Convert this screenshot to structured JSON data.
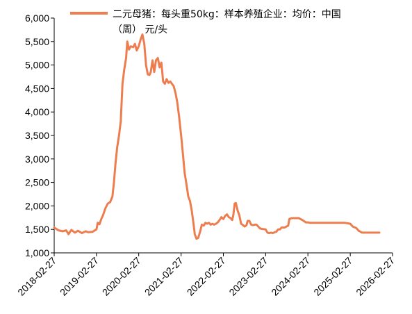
{
  "chart_data": {
    "type": "line",
    "title": "",
    "xlabel": "",
    "ylabel": "",
    "ylim": [
      1000,
      6000
    ],
    "y_ticks": [
      "1,000",
      "1,500",
      "2,000",
      "2,500",
      "3,000",
      "3,500",
      "4,000",
      "4,500",
      "5,000",
      "5,500",
      "6,000"
    ],
    "y_tick_values": [
      1000,
      1500,
      2000,
      2500,
      3000,
      3500,
      4000,
      4500,
      5000,
      5500,
      6000
    ],
    "x_ticks": [
      "2018-02-27",
      "2019-02-27",
      "2020-02-27",
      "2021-02-27",
      "2022-02-27",
      "2023-02-27",
      "2024-02-27",
      "2025-02-27",
      "2026-02-27"
    ],
    "x_range": [
      "2018-02-27",
      "2026-02-27"
    ],
    "grid": false,
    "legend_position": "top",
    "series": [
      {
        "name": "二元母猪：每头重50kg：样本养殖企业：均价：中国（周）  元/头",
        "color": "#ed7d4e",
        "points": [
          [
            "2018-02-27",
            1540
          ],
          [
            "2018-04-05",
            1480
          ],
          [
            "2018-05-10",
            1460
          ],
          [
            "2018-06-10",
            1480
          ],
          [
            "2018-07-01",
            1400
          ],
          [
            "2018-07-25",
            1490
          ],
          [
            "2018-08-25",
            1430
          ],
          [
            "2018-09-20",
            1470
          ],
          [
            "2018-10-25",
            1420
          ],
          [
            "2018-11-25",
            1460
          ],
          [
            "2018-12-20",
            1440
          ],
          [
            "2019-01-25",
            1450
          ],
          [
            "2019-02-27",
            1500
          ],
          [
            "2019-03-10",
            1640
          ],
          [
            "2019-03-25",
            1610
          ],
          [
            "2019-04-10",
            1720
          ],
          [
            "2019-04-25",
            1800
          ],
          [
            "2019-05-15",
            1950
          ],
          [
            "2019-06-05",
            2050
          ],
          [
            "2019-06-25",
            2080
          ],
          [
            "2019-07-15",
            2200
          ],
          [
            "2019-07-28",
            2500
          ],
          [
            "2019-08-10",
            2900
          ],
          [
            "2019-08-25",
            3250
          ],
          [
            "2019-09-10",
            3500
          ],
          [
            "2019-09-25",
            3800
          ],
          [
            "2019-10-10",
            4600
          ],
          [
            "2019-10-25",
            4900
          ],
          [
            "2019-11-10",
            5150
          ],
          [
            "2019-11-20",
            5500
          ],
          [
            "2019-12-05",
            5330
          ],
          [
            "2019-12-20",
            5400
          ],
          [
            "2020-01-10",
            5380
          ],
          [
            "2020-01-25",
            5450
          ],
          [
            "2020-02-10",
            5310
          ],
          [
            "2020-02-27",
            5400
          ],
          [
            "2020-03-15",
            5550
          ],
          [
            "2020-03-30",
            5650
          ],
          [
            "2020-04-15",
            5450
          ],
          [
            "2020-04-30",
            5000
          ],
          [
            "2020-05-15",
            4800
          ],
          [
            "2020-05-30",
            4790
          ],
          [
            "2020-06-10",
            4850
          ],
          [
            "2020-06-25",
            5100
          ],
          [
            "2020-07-10",
            4850
          ],
          [
            "2020-07-25",
            5100
          ],
          [
            "2020-08-10",
            5150
          ],
          [
            "2020-08-25",
            4950
          ],
          [
            "2020-09-10",
            5050
          ],
          [
            "2020-09-25",
            4650
          ],
          [
            "2020-10-10",
            4600
          ],
          [
            "2020-10-25",
            4700
          ],
          [
            "2020-11-10",
            4620
          ],
          [
            "2020-11-25",
            4650
          ],
          [
            "2020-12-10",
            4600
          ],
          [
            "2020-12-25",
            4550
          ],
          [
            "2021-01-10",
            4400
          ],
          [
            "2021-01-25",
            4200
          ],
          [
            "2021-02-10",
            3900
          ],
          [
            "2021-02-27",
            3500
          ],
          [
            "2021-03-15",
            3100
          ],
          [
            "2021-03-30",
            2700
          ],
          [
            "2021-04-15",
            2450
          ],
          [
            "2021-04-30",
            2200
          ],
          [
            "2021-05-15",
            2100
          ],
          [
            "2021-05-30",
            1900
          ],
          [
            "2021-06-15",
            1600
          ],
          [
            "2021-06-25",
            1400
          ],
          [
            "2021-07-10",
            1300
          ],
          [
            "2021-07-25",
            1320
          ],
          [
            "2021-08-10",
            1450
          ],
          [
            "2021-08-25",
            1600
          ],
          [
            "2021-09-10",
            1580
          ],
          [
            "2021-09-25",
            1640
          ],
          [
            "2021-10-10",
            1620
          ],
          [
            "2021-10-25",
            1640
          ],
          [
            "2021-11-10",
            1600
          ],
          [
            "2021-11-25",
            1620
          ],
          [
            "2021-12-10",
            1600
          ],
          [
            "2021-12-25",
            1620
          ],
          [
            "2022-01-10",
            1650
          ],
          [
            "2022-01-25",
            1700
          ],
          [
            "2022-02-10",
            1760
          ],
          [
            "2022-02-27",
            1720
          ],
          [
            "2022-03-15",
            1790
          ],
          [
            "2022-03-30",
            1820
          ],
          [
            "2022-04-15",
            1760
          ],
          [
            "2022-04-30",
            1740
          ],
          [
            "2022-05-15",
            1700
          ],
          [
            "2022-05-25",
            1820
          ],
          [
            "2022-06-05",
            2050
          ],
          [
            "2022-06-15",
            2060
          ],
          [
            "2022-06-30",
            1900
          ],
          [
            "2022-07-15",
            1800
          ],
          [
            "2022-07-30",
            1620
          ],
          [
            "2022-08-15",
            1590
          ],
          [
            "2022-08-30",
            1560
          ],
          [
            "2022-09-15",
            1590
          ],
          [
            "2022-09-25",
            1680
          ],
          [
            "2022-10-10",
            1680
          ],
          [
            "2022-10-25",
            1600
          ],
          [
            "2022-11-10",
            1590
          ],
          [
            "2022-11-25",
            1600
          ],
          [
            "2022-12-10",
            1600
          ],
          [
            "2022-12-25",
            1560
          ],
          [
            "2023-01-10",
            1520
          ],
          [
            "2023-01-25",
            1510
          ],
          [
            "2023-02-27",
            1500
          ],
          [
            "2023-03-15",
            1430
          ],
          [
            "2023-03-30",
            1420
          ],
          [
            "2023-04-15",
            1430
          ],
          [
            "2023-04-30",
            1420
          ],
          [
            "2023-05-15",
            1440
          ],
          [
            "2023-05-30",
            1450
          ],
          [
            "2023-06-15",
            1500
          ],
          [
            "2023-06-30",
            1500
          ],
          [
            "2023-07-15",
            1540
          ],
          [
            "2023-08-10",
            1540
          ],
          [
            "2023-08-25",
            1560
          ],
          [
            "2023-09-10",
            1580
          ],
          [
            "2023-09-20",
            1720
          ],
          [
            "2023-10-10",
            1740
          ],
          [
            "2023-11-10",
            1740
          ],
          [
            "2023-12-10",
            1740
          ],
          [
            "2024-01-10",
            1700
          ],
          [
            "2024-02-10",
            1650
          ],
          [
            "2024-02-27",
            1650
          ],
          [
            "2024-03-15",
            1640
          ],
          [
            "2024-05-01",
            1640
          ],
          [
            "2024-08-01",
            1640
          ],
          [
            "2024-11-01",
            1640
          ],
          [
            "2025-01-10",
            1640
          ],
          [
            "2025-02-27",
            1620
          ],
          [
            "2025-03-20",
            1560
          ],
          [
            "2025-04-20",
            1530
          ],
          [
            "2025-05-10",
            1470
          ],
          [
            "2025-06-10",
            1430
          ],
          [
            "2025-08-10",
            1430
          ],
          [
            "2025-10-10",
            1430
          ],
          [
            "2025-11-05",
            1430
          ]
        ]
      }
    ]
  }
}
